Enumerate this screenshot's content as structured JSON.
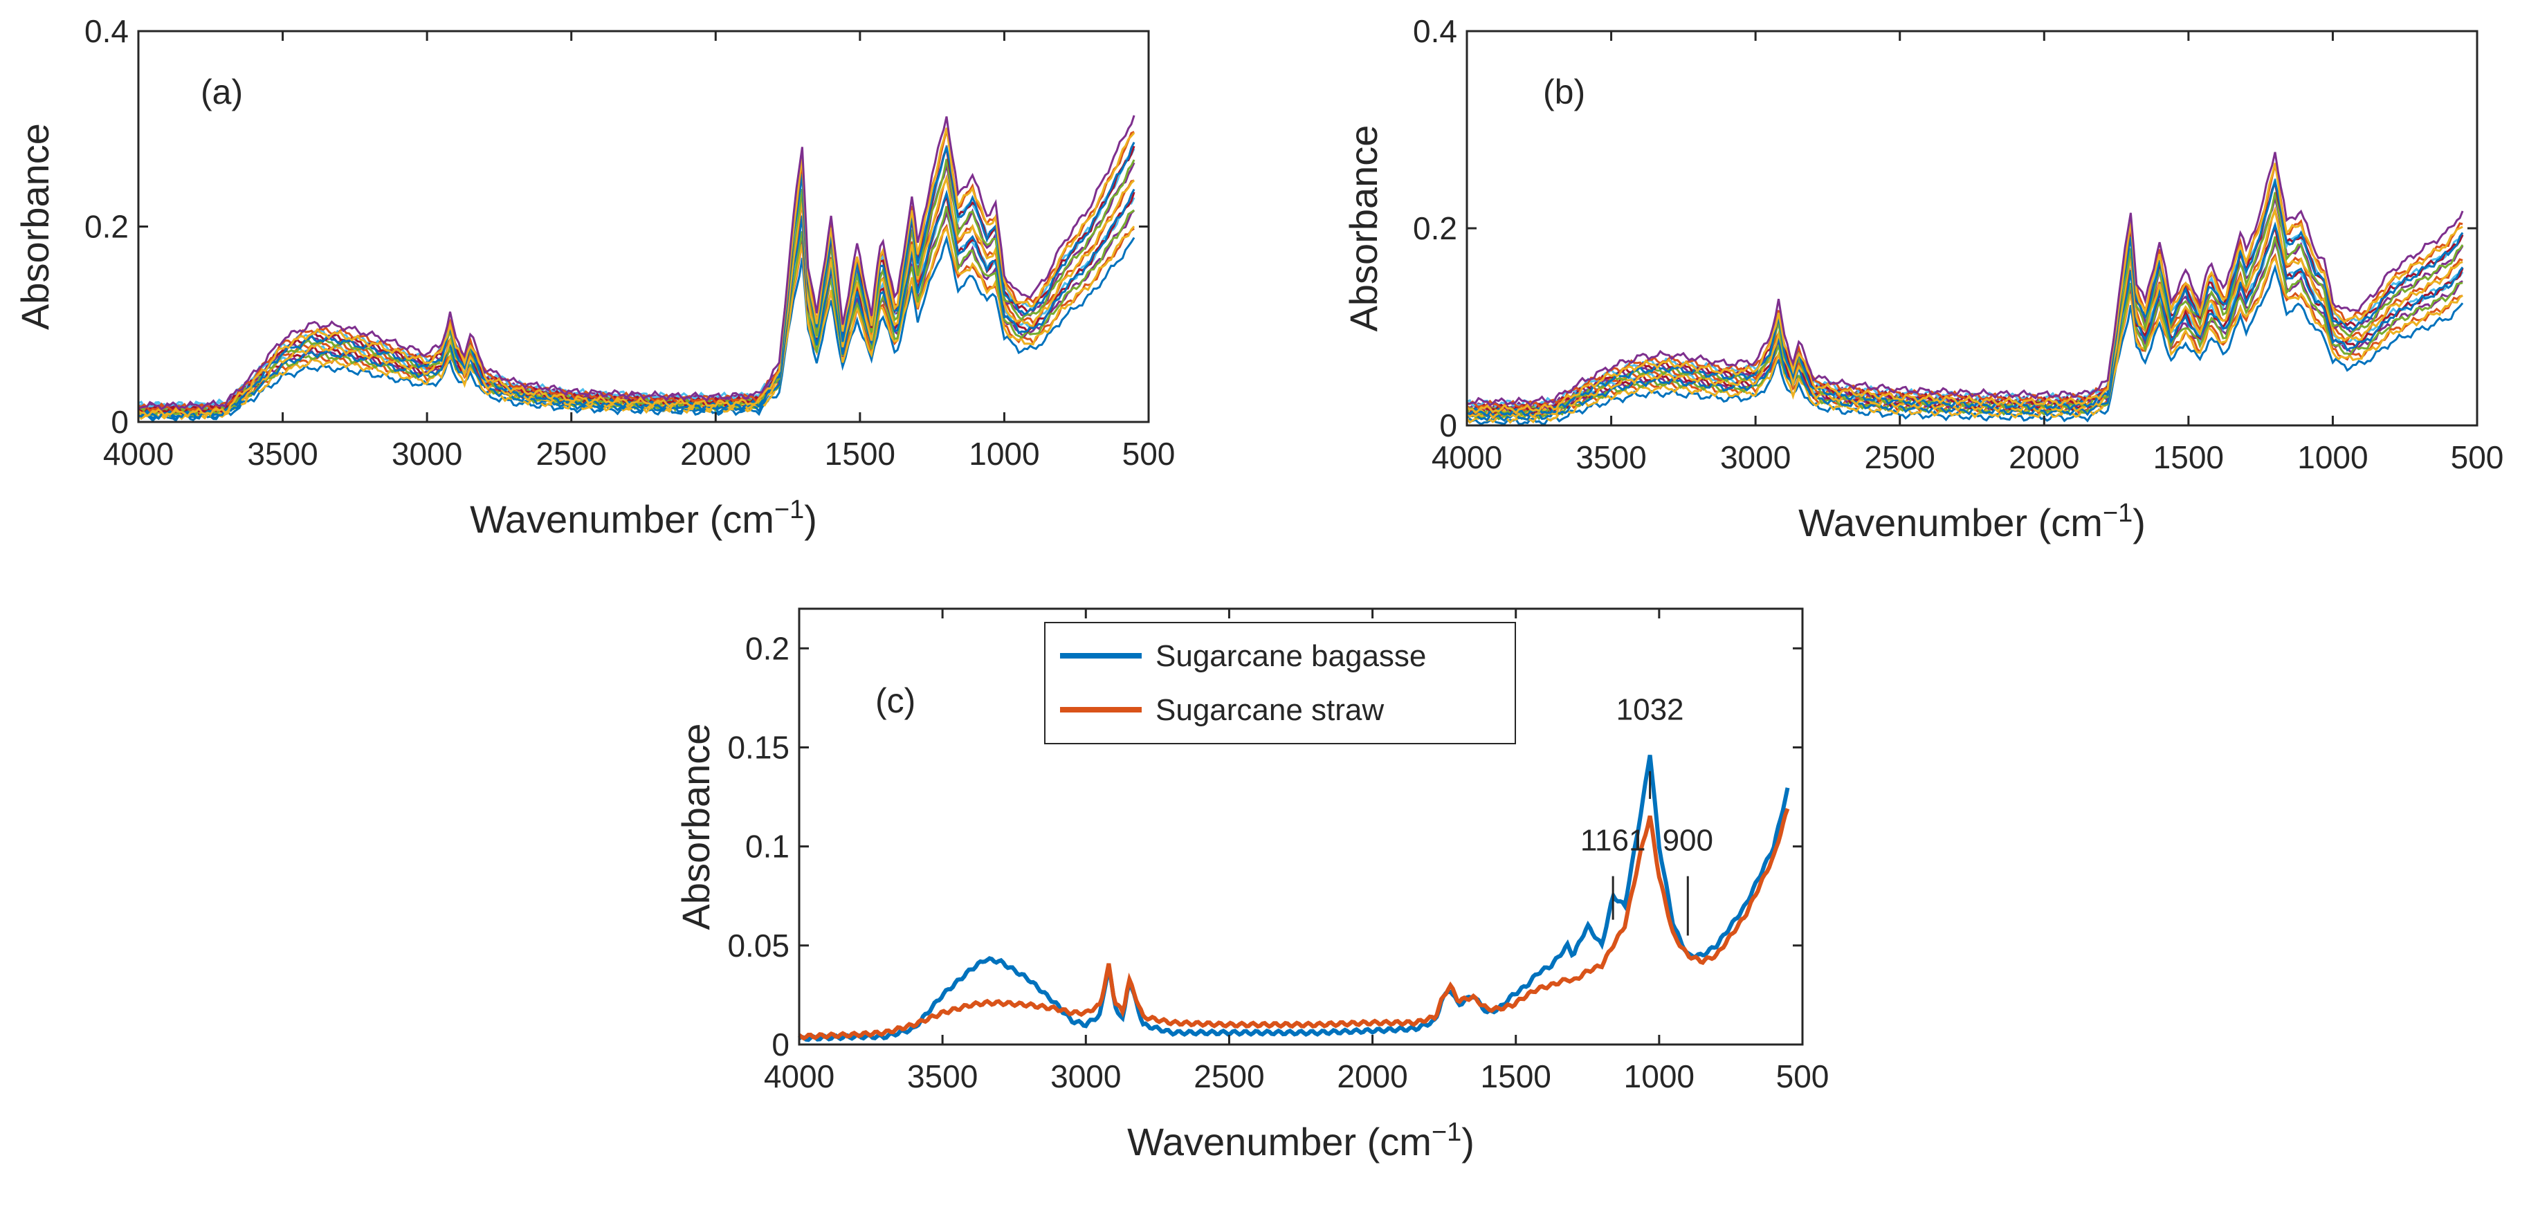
{
  "chart_data": [
    {
      "id": "a",
      "type": "line",
      "panel_label": "(a)",
      "xlabel": "Wavenumber (cm",
      "xlabel_sup": "−1",
      "xlabel_close": ")",
      "ylabel": "Absorbance",
      "xlim": [
        4000,
        500
      ],
      "ylim": [
        0,
        0.4
      ],
      "xticks": [
        4000,
        3500,
        3000,
        2500,
        2000,
        1500,
        1000,
        500
      ],
      "xtick_labels": [
        "4000",
        "3500",
        "3000",
        "2500",
        "2000",
        "1500",
        "1000",
        "500"
      ],
      "yticks": [
        0,
        0.2,
        0.4
      ],
      "ytick_labels": [
        "0",
        "0.2",
        "0.4"
      ],
      "spectra_count": 18,
      "series_colors": [
        "#0072BD",
        "#D95319",
        "#EDB120",
        "#7E2F8E",
        "#77AC30",
        "#4DBEEE",
        "#A2142F"
      ],
      "base_profile": {
        "x": [
          4000,
          3800,
          3700,
          3600,
          3500,
          3400,
          3300,
          3200,
          3100,
          3000,
          2950,
          2920,
          2900,
          2870,
          2850,
          2800,
          2700,
          2500,
          2200,
          2000,
          1850,
          1780,
          1730,
          1700,
          1680,
          1650,
          1600,
          1560,
          1510,
          1460,
          1425,
          1375,
          1320,
          1300,
          1250,
          1200,
          1160,
          1110,
          1060,
          1030,
          1000,
          950,
          900,
          850,
          800,
          700,
          600,
          550
        ],
        "y": [
          0.008,
          0.008,
          0.01,
          0.04,
          0.075,
          0.09,
          0.088,
          0.08,
          0.07,
          0.06,
          0.07,
          0.1,
          0.075,
          0.06,
          0.08,
          0.045,
          0.032,
          0.022,
          0.018,
          0.017,
          0.019,
          0.05,
          0.2,
          0.27,
          0.15,
          0.1,
          0.2,
          0.09,
          0.17,
          0.1,
          0.18,
          0.11,
          0.22,
          0.17,
          0.24,
          0.3,
          0.22,
          0.24,
          0.2,
          0.21,
          0.14,
          0.12,
          0.12,
          0.14,
          0.17,
          0.21,
          0.27,
          0.3
        ]
      }
    },
    {
      "id": "b",
      "type": "line",
      "panel_label": "(b)",
      "xlabel": "Wavenumber (cm",
      "xlabel_sup": "−1",
      "xlabel_close": ")",
      "ylabel": "Absorbance",
      "xlim": [
        4000,
        500
      ],
      "ylim": [
        0,
        0.4
      ],
      "xticks": [
        4000,
        3500,
        3000,
        2500,
        2000,
        1500,
        1000,
        500
      ],
      "xtick_labels": [
        "4000",
        "3500",
        "3000",
        "2500",
        "2000",
        "1500",
        "1000",
        "500"
      ],
      "yticks": [
        0,
        0.2,
        0.4
      ],
      "ytick_labels": [
        "0",
        "0.2",
        "0.4"
      ],
      "spectra_count": 18,
      "series_colors": [
        "#0072BD",
        "#D95319",
        "#EDB120",
        "#7E2F8E",
        "#77AC30",
        "#4DBEEE",
        "#A2142F"
      ],
      "base_profile": {
        "x": [
          4000,
          3800,
          3700,
          3600,
          3500,
          3400,
          3300,
          3200,
          3100,
          3000,
          2950,
          2920,
          2900,
          2870,
          2850,
          2800,
          2700,
          2500,
          2200,
          2000,
          1850,
          1780,
          1730,
          1700,
          1680,
          1650,
          1600,
          1560,
          1510,
          1460,
          1425,
          1375,
          1320,
          1300,
          1250,
          1200,
          1160,
          1110,
          1060,
          1030,
          1000,
          950,
          900,
          850,
          800,
          700,
          600,
          550
        ],
        "y": [
          0.03,
          0.03,
          0.032,
          0.05,
          0.065,
          0.075,
          0.077,
          0.073,
          0.068,
          0.07,
          0.095,
          0.13,
          0.095,
          0.07,
          0.09,
          0.055,
          0.048,
          0.042,
          0.038,
          0.037,
          0.038,
          0.05,
          0.16,
          0.22,
          0.15,
          0.13,
          0.19,
          0.13,
          0.16,
          0.13,
          0.17,
          0.14,
          0.2,
          0.18,
          0.22,
          0.28,
          0.21,
          0.22,
          0.18,
          0.17,
          0.13,
          0.12,
          0.125,
          0.14,
          0.16,
          0.18,
          0.2,
          0.22
        ]
      }
    },
    {
      "id": "c",
      "type": "line",
      "panel_label": "(c)",
      "xlabel": "Wavenumber (cm",
      "xlabel_sup": "−1",
      "xlabel_close": ")",
      "ylabel": "Absorbance",
      "xlim": [
        4000,
        500
      ],
      "ylim": [
        0,
        0.22
      ],
      "xticks": [
        4000,
        3500,
        3000,
        2500,
        2000,
        1500,
        1000,
        500
      ],
      "xtick_labels": [
        "4000",
        "3500",
        "3000",
        "2500",
        "2000",
        "1500",
        "1000",
        "500"
      ],
      "yticks": [
        0,
        0.05,
        0.1,
        0.15,
        0.2
      ],
      "ytick_labels": [
        "0",
        "0.05",
        "0.1",
        "0.15",
        "0.2"
      ],
      "legend_position": "top-center",
      "series": [
        {
          "name": "Sugarcane bagasse",
          "color": "#0072BD",
          "x": [
            4000,
            3800,
            3700,
            3600,
            3500,
            3400,
            3350,
            3300,
            3200,
            3100,
            3050,
            3000,
            2950,
            2920,
            2900,
            2870,
            2850,
            2800,
            2700,
            2500,
            2200,
            2000,
            1850,
            1780,
            1760,
            1730,
            1700,
            1650,
            1600,
            1560,
            1510,
            1460,
            1425,
            1375,
            1320,
            1300,
            1250,
            1200,
            1161,
            1120,
            1060,
            1032,
            1000,
            950,
            900,
            850,
            800,
            700,
            600,
            550
          ],
          "y": [
            0.003,
            0.004,
            0.004,
            0.008,
            0.025,
            0.038,
            0.043,
            0.042,
            0.033,
            0.02,
            0.012,
            0.01,
            0.015,
            0.04,
            0.02,
            0.012,
            0.033,
            0.01,
            0.006,
            0.006,
            0.006,
            0.007,
            0.008,
            0.012,
            0.022,
            0.028,
            0.02,
            0.025,
            0.016,
            0.018,
            0.025,
            0.03,
            0.036,
            0.04,
            0.05,
            0.045,
            0.06,
            0.05,
            0.075,
            0.07,
            0.12,
            0.147,
            0.1,
            0.06,
            0.045,
            0.045,
            0.05,
            0.07,
            0.1,
            0.13
          ]
        },
        {
          "name": "Sugarcane straw",
          "color": "#D95319",
          "x": [
            4000,
            3800,
            3700,
            3600,
            3500,
            3400,
            3350,
            3300,
            3200,
            3100,
            3050,
            3000,
            2950,
            2920,
            2900,
            2870,
            2850,
            2800,
            2700,
            2500,
            2200,
            2000,
            1850,
            1780,
            1760,
            1730,
            1700,
            1650,
            1600,
            1560,
            1510,
            1460,
            1425,
            1375,
            1320,
            1300,
            1250,
            1200,
            1161,
            1120,
            1060,
            1032,
            1000,
            950,
            900,
            850,
            800,
            700,
            600,
            550
          ],
          "y": [
            0.004,
            0.005,
            0.006,
            0.01,
            0.016,
            0.02,
            0.021,
            0.021,
            0.02,
            0.018,
            0.016,
            0.016,
            0.02,
            0.04,
            0.022,
            0.016,
            0.033,
            0.014,
            0.011,
            0.01,
            0.01,
            0.011,
            0.011,
            0.014,
            0.022,
            0.03,
            0.022,
            0.024,
            0.018,
            0.018,
            0.02,
            0.025,
            0.028,
            0.03,
            0.033,
            0.032,
            0.037,
            0.04,
            0.05,
            0.06,
            0.1,
            0.115,
            0.085,
            0.055,
            0.045,
            0.042,
            0.045,
            0.065,
            0.095,
            0.12
          ]
        }
      ],
      "annotations": [
        {
          "text": "1032",
          "x": 1032,
          "y_line": [
            0.124,
            0.138
          ],
          "y_text": 0.164
        },
        {
          "text": "1161",
          "x": 1161,
          "y_line": [
            0.063,
            0.085
          ],
          "y_text": 0.098
        },
        {
          "text": "900",
          "x": 900,
          "y_line": [
            0.055,
            0.085
          ],
          "y_text": 0.098
        }
      ]
    }
  ]
}
